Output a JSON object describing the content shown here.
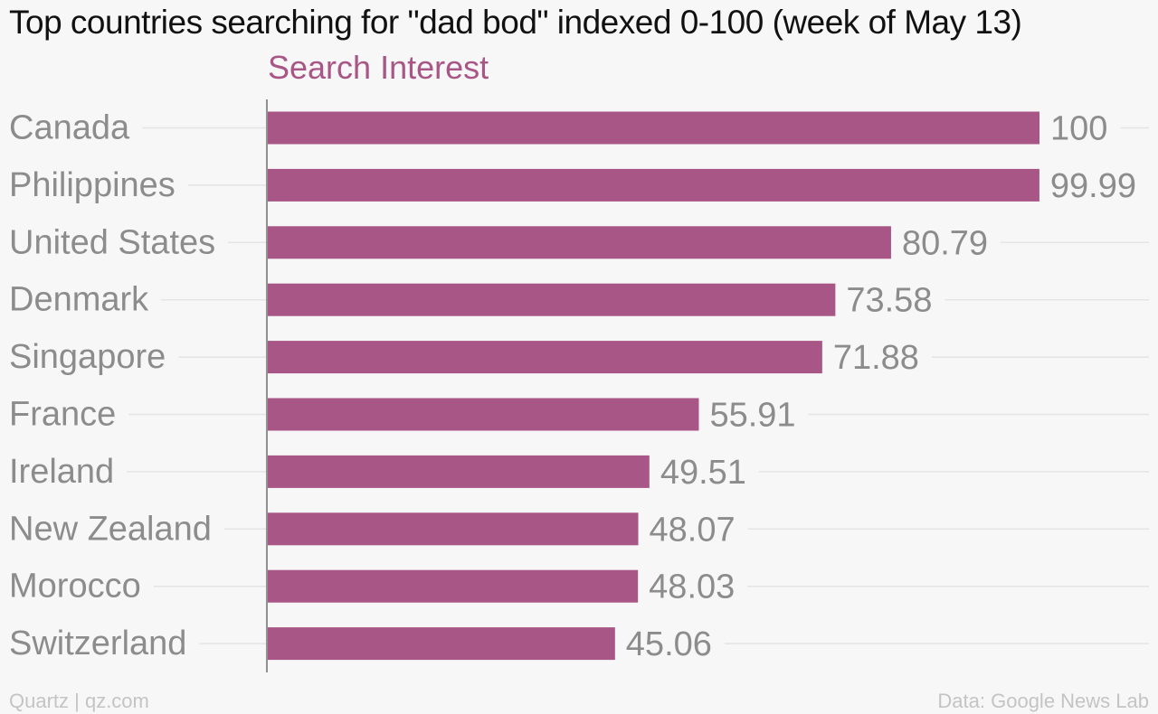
{
  "title": "Top countries searching for \"dad bod\" indexed 0-100 (week of May 13)",
  "footer": {
    "source_left": "Quartz | qz.com",
    "source_right": "Data: Google News Lab"
  },
  "colors": {
    "bar": "#a85686",
    "series_label": "#a85686",
    "category_text": "#8c8c8c",
    "value_text": "#8c8c8c",
    "gridline": "#e4e4e4",
    "axis": "#6f6f6f"
  },
  "chart_data": {
    "type": "bar",
    "orientation": "horizontal",
    "series": [
      {
        "name": "Search Interest",
        "values": [
          100,
          99.99,
          80.79,
          73.58,
          71.88,
          55.91,
          49.51,
          48.07,
          48.03,
          45.06
        ]
      }
    ],
    "categories": [
      "Canada",
      "Philippines",
      "United States",
      "Denmark",
      "Singapore",
      "France",
      "Ireland",
      "New Zealand",
      "Morocco",
      "Switzerland"
    ],
    "value_labels": [
      "100",
      "99.99",
      "80.79",
      "73.58",
      "71.88",
      "55.91",
      "49.51",
      "48.07",
      "48.03",
      "45.06"
    ],
    "xlim": [
      0,
      100
    ],
    "grid": true,
    "legend": "top"
  }
}
